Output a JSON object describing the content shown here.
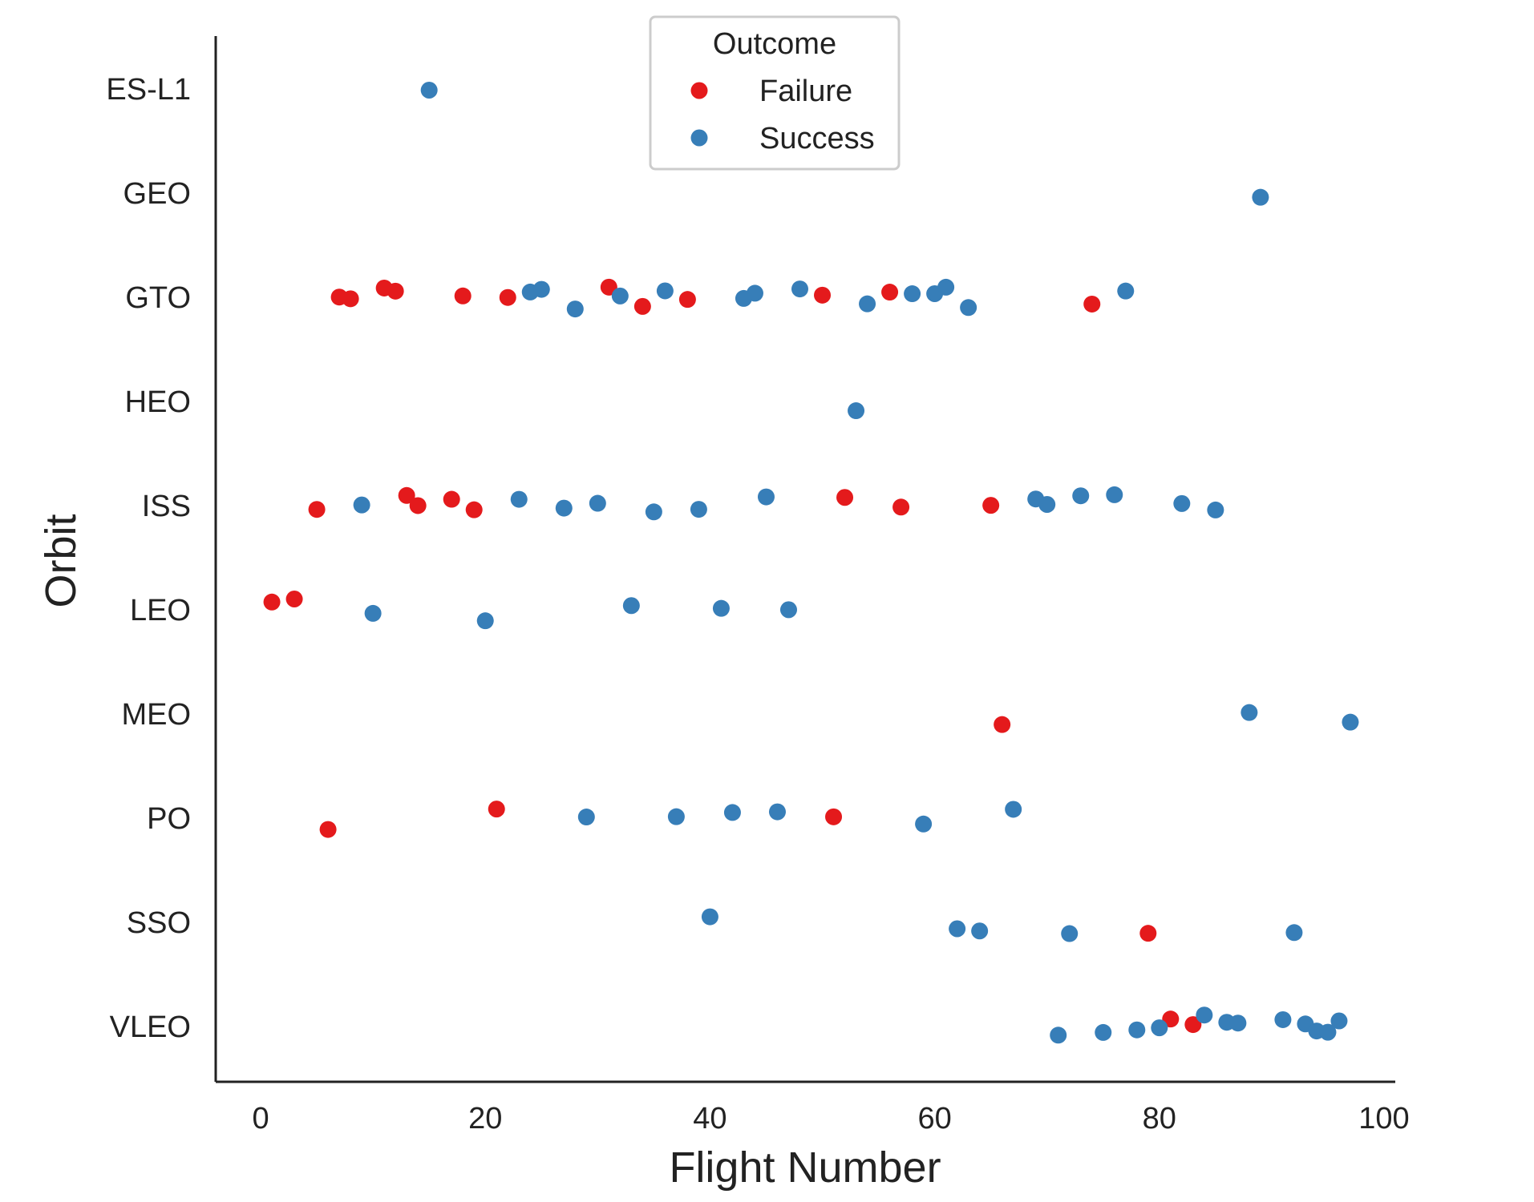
{
  "chart_data": {
    "type": "scatter",
    "title": "",
    "xlabel": "Flight Number",
    "ylabel": "Orbit",
    "xlim": [
      -4,
      101
    ],
    "xticks": [
      0,
      20,
      40,
      60,
      80,
      100
    ],
    "categories": [
      "ES-L1",
      "GEO",
      "GTO",
      "HEO",
      "ISS",
      "LEO",
      "MEO",
      "PO",
      "SSO",
      "VLEO"
    ],
    "grid": false,
    "legend": {
      "title": "Outcome",
      "placement": "top-center",
      "entries": [
        {
          "name": "Failure",
          "color": "#e41a1c"
        },
        {
          "name": "Success",
          "color": "#377eb8"
        }
      ]
    },
    "series": [
      {
        "name": "Failure",
        "color": "#e41a1c",
        "points": [
          {
            "x": 7,
            "y": "GTO"
          },
          {
            "x": 8,
            "y": "GTO"
          },
          {
            "x": 11,
            "y": "GTO"
          },
          {
            "x": 12,
            "y": "GTO"
          },
          {
            "x": 18,
            "y": "GTO"
          },
          {
            "x": 22,
            "y": "GTO"
          },
          {
            "x": 31,
            "y": "GTO"
          },
          {
            "x": 34,
            "y": "GTO"
          },
          {
            "x": 38,
            "y": "GTO"
          },
          {
            "x": 50,
            "y": "GTO"
          },
          {
            "x": 56,
            "y": "GTO"
          },
          {
            "x": 74,
            "y": "GTO"
          },
          {
            "x": 5,
            "y": "ISS"
          },
          {
            "x": 13,
            "y": "ISS"
          },
          {
            "x": 14,
            "y": "ISS"
          },
          {
            "x": 17,
            "y": "ISS"
          },
          {
            "x": 19,
            "y": "ISS"
          },
          {
            "x": 52,
            "y": "ISS"
          },
          {
            "x": 57,
            "y": "ISS"
          },
          {
            "x": 65,
            "y": "ISS"
          },
          {
            "x": 1,
            "y": "LEO"
          },
          {
            "x": 3,
            "y": "LEO"
          },
          {
            "x": 66,
            "y": "MEO"
          },
          {
            "x": 6,
            "y": "PO"
          },
          {
            "x": 21,
            "y": "PO"
          },
          {
            "x": 51,
            "y": "PO"
          },
          {
            "x": 79,
            "y": "SSO"
          },
          {
            "x": 81,
            "y": "VLEO"
          },
          {
            "x": 83,
            "y": "VLEO"
          }
        ]
      },
      {
        "name": "Success",
        "color": "#377eb8",
        "points": [
          {
            "x": 15,
            "y": "ES-L1"
          },
          {
            "x": 89,
            "y": "GEO"
          },
          {
            "x": 24,
            "y": "GTO"
          },
          {
            "x": 25,
            "y": "GTO"
          },
          {
            "x": 28,
            "y": "GTO"
          },
          {
            "x": 32,
            "y": "GTO"
          },
          {
            "x": 36,
            "y": "GTO"
          },
          {
            "x": 43,
            "y": "GTO"
          },
          {
            "x": 44,
            "y": "GTO"
          },
          {
            "x": 48,
            "y": "GTO"
          },
          {
            "x": 54,
            "y": "GTO"
          },
          {
            "x": 58,
            "y": "GTO"
          },
          {
            "x": 60,
            "y": "GTO"
          },
          {
            "x": 61,
            "y": "GTO"
          },
          {
            "x": 63,
            "y": "GTO"
          },
          {
            "x": 77,
            "y": "GTO"
          },
          {
            "x": 53,
            "y": "HEO"
          },
          {
            "x": 9,
            "y": "ISS"
          },
          {
            "x": 23,
            "y": "ISS"
          },
          {
            "x": 27,
            "y": "ISS"
          },
          {
            "x": 30,
            "y": "ISS"
          },
          {
            "x": 35,
            "y": "ISS"
          },
          {
            "x": 39,
            "y": "ISS"
          },
          {
            "x": 45,
            "y": "ISS"
          },
          {
            "x": 69,
            "y": "ISS"
          },
          {
            "x": 70,
            "y": "ISS"
          },
          {
            "x": 73,
            "y": "ISS"
          },
          {
            "x": 76,
            "y": "ISS"
          },
          {
            "x": 82,
            "y": "ISS"
          },
          {
            "x": 85,
            "y": "ISS"
          },
          {
            "x": 10,
            "y": "LEO"
          },
          {
            "x": 20,
            "y": "LEO"
          },
          {
            "x": 33,
            "y": "LEO"
          },
          {
            "x": 41,
            "y": "LEO"
          },
          {
            "x": 47,
            "y": "LEO"
          },
          {
            "x": 88,
            "y": "MEO"
          },
          {
            "x": 97,
            "y": "MEO"
          },
          {
            "x": 29,
            "y": "PO"
          },
          {
            "x": 37,
            "y": "PO"
          },
          {
            "x": 42,
            "y": "PO"
          },
          {
            "x": 46,
            "y": "PO"
          },
          {
            "x": 59,
            "y": "PO"
          },
          {
            "x": 67,
            "y": "PO"
          },
          {
            "x": 40,
            "y": "SSO"
          },
          {
            "x": 62,
            "y": "SSO"
          },
          {
            "x": 64,
            "y": "SSO"
          },
          {
            "x": 72,
            "y": "SSO"
          },
          {
            "x": 92,
            "y": "SSO"
          },
          {
            "x": 71,
            "y": "VLEO"
          },
          {
            "x": 75,
            "y": "VLEO"
          },
          {
            "x": 78,
            "y": "VLEO"
          },
          {
            "x": 80,
            "y": "VLEO"
          },
          {
            "x": 84,
            "y": "VLEO"
          },
          {
            "x": 86,
            "y": "VLEO"
          },
          {
            "x": 87,
            "y": "VLEO"
          },
          {
            "x": 91,
            "y": "VLEO"
          },
          {
            "x": 93,
            "y": "VLEO"
          },
          {
            "x": 94,
            "y": "VLEO"
          },
          {
            "x": 95,
            "y": "VLEO"
          },
          {
            "x": 96,
            "y": "VLEO"
          }
        ]
      }
    ]
  }
}
